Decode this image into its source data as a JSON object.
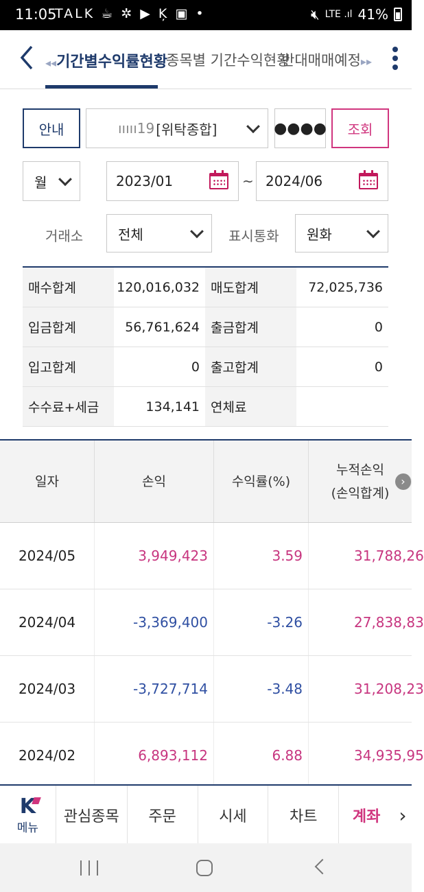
{
  "statusbar": {
    "time": "11:05",
    "notifications": "TALK ☕ ✲ ▶ Ķ ▣ •",
    "network": "LTE .ıl",
    "battery": "41%"
  },
  "nav": {
    "tabs": [
      {
        "label": "기간별수익률현황",
        "active": true
      },
      {
        "label": "종목별 기간수익현황",
        "active": false
      },
      {
        "label": "반대매매예정",
        "active": false
      }
    ]
  },
  "controls": {
    "info_button": "안내",
    "account_number": "ııııı19",
    "account_type": "[위탁종합]",
    "password_mask": "●●●●",
    "query_button": "조회",
    "period_unit": "월",
    "start_date": "2023/01",
    "date_separator": "~",
    "end_date": "2024/06",
    "exchange_label": "거래소",
    "exchange_value": "전체",
    "currency_label": "표시통화",
    "currency_value": "원화"
  },
  "summary": {
    "rows": [
      {
        "k1": "매수합계",
        "v1": "120,016,032",
        "k2": "매도합계",
        "v2": "72,025,736"
      },
      {
        "k1": "입금합계",
        "v1": "56,761,624",
        "k2": "출금합계",
        "v2": "0"
      },
      {
        "k1": "입고합계",
        "v1": "0",
        "k2": "출고합계",
        "v2": "0"
      },
      {
        "k1": "수수료+세금",
        "v1": "134,141",
        "k2": "연체료",
        "v2": ""
      }
    ]
  },
  "table": {
    "headers": {
      "date": "일자",
      "pnl": "손익",
      "rate": "수익률(%)",
      "cum_line1": "누적손익",
      "cum_line2": "(손익합계)"
    },
    "rows": [
      {
        "date": "2024/05",
        "pnl": "3,949,423",
        "rate": "3.59",
        "cum": "31,788,26"
      },
      {
        "date": "2024/04",
        "pnl": "-3,369,400",
        "rate": "-3.26",
        "cum": "27,838,83"
      },
      {
        "date": "2024/03",
        "pnl": "-3,727,714",
        "rate": "-3.48",
        "cum": "31,208,23"
      },
      {
        "date": "2024/02",
        "pnl": "6,893,112",
        "rate": "6.88",
        "cum": "34,935,95"
      }
    ]
  },
  "bottomnav": {
    "menu_logo": "K",
    "menu_label": "메뉴",
    "items": [
      "관심종목",
      "주문",
      "시세",
      "차트",
      "계좌"
    ]
  },
  "colors": {
    "primary": "#1e3a6b",
    "accent": "#d0357e",
    "positive": "#c7357f",
    "negative": "#2f4fa2"
  }
}
